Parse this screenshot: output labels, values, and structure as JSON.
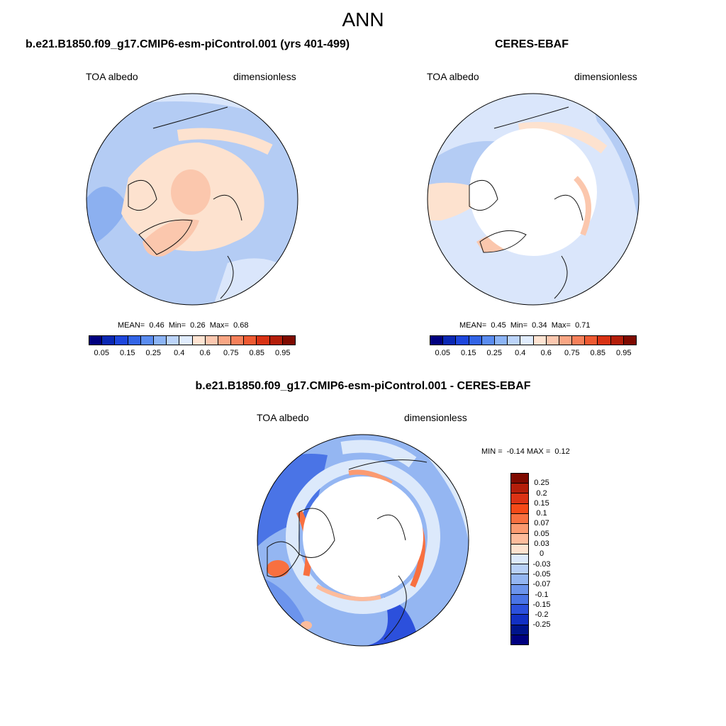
{
  "title": "ANN",
  "panels": [
    {
      "title": "b.e21.B1850.f09_g17.CMIP6-esm-piControl.001 (yrs 401-499)",
      "variable": "TOA albedo",
      "units": "dimensionless",
      "stats": {
        "mean_label": "MEAN=",
        "mean": "0.46",
        "min_label": "Min=",
        "min": "0.26",
        "max_label": "Max=",
        "max": "0.68"
      }
    },
    {
      "title": "CERES-EBAF",
      "variable": "TOA albedo",
      "units": "dimensionless",
      "stats": {
        "mean_label": "MEAN=",
        "mean": "0.45",
        "min_label": "Min=",
        "min": "0.34",
        "max_label": "Max=",
        "max": "0.71"
      }
    }
  ],
  "diff_panel": {
    "title": "b.e21.B1850.f09_g17.CMIP6-esm-piControl.001 - CERES-EBAF",
    "variable": "TOA albedo",
    "units": "dimensionless",
    "minmax": {
      "min_label": "MIN =",
      "min": "-0.14",
      "max_label": "MAX =",
      "max": "0.12"
    }
  },
  "colorbar_abs": {
    "colors": [
      "#00007f",
      "#0a28b4",
      "#1e46dc",
      "#3264e6",
      "#5a8cf0",
      "#8cb4f5",
      "#bcd4fa",
      "#e0ecfd",
      "#ffe4d2",
      "#fcc8b0",
      "#f9a684",
      "#f5805a",
      "#ee5a32",
      "#d83214",
      "#b41e0a",
      "#7f0a00"
    ],
    "labels": [
      "0.05",
      "0.15",
      "0.25",
      "0.4",
      "0.6",
      "0.75",
      "0.85",
      "0.95"
    ]
  },
  "colorbar_diff": {
    "colors": [
      "#7f0a00",
      "#b41e0a",
      "#dc3214",
      "#f54a18",
      "#f87040",
      "#fb9a70",
      "#fdbc9c",
      "#fde2cf",
      "#dce9fb",
      "#b8d0f7",
      "#94b6f2",
      "#6c94ec",
      "#4a74e6",
      "#2c50dc",
      "#1230c4",
      "#00148c",
      "#000080"
    ],
    "labels": [
      "0.25",
      "0.2",
      "0.15",
      "0.1",
      "0.07",
      "0.05",
      "0.03",
      "0",
      "-0.03",
      "-0.05",
      "-0.07",
      "-0.1",
      "-0.15",
      "-0.2",
      "-0.25"
    ]
  },
  "map_colors": {
    "ocean_blue": "#b4ccf4",
    "light_blue": "#dae6fb",
    "mid_blue": "#8cb0f0",
    "deep_blue": "#4a78e6",
    "light_peach": "#fde2cf",
    "peach": "#fbc7ad",
    "orange": "#f5805a",
    "white": "#ffffff"
  }
}
